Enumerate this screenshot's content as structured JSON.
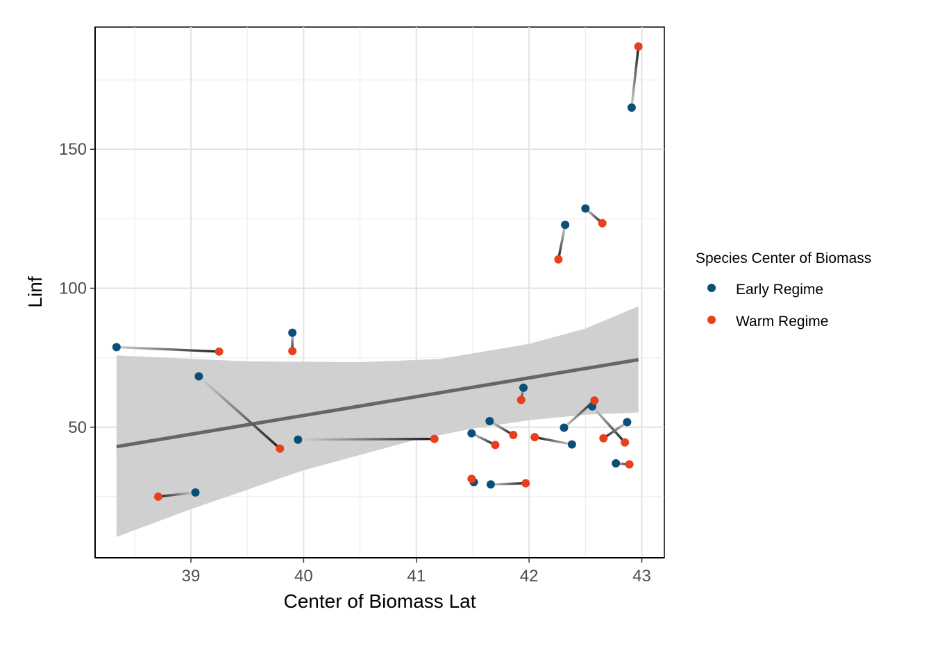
{
  "chart_data": {
    "type": "scatter",
    "title": "",
    "xlabel": "Center of Biomass Lat",
    "ylabel": "Linf",
    "xlim": [
      38.15,
      43.2
    ],
    "ylim": [
      3,
      194
    ],
    "x_ticks": [
      39,
      40,
      41,
      42,
      43
    ],
    "y_ticks": [
      50,
      100,
      150
    ],
    "grid": true,
    "legend": {
      "title": "Species Center of Biomass",
      "placement": "right",
      "entries": [
        {
          "name": "Early Regime",
          "color": "#0a4f7a"
        },
        {
          "name": "Warm Regime",
          "color": "#e8401c"
        }
      ]
    },
    "series": [
      {
        "name": "Early Regime",
        "color": "#0a4f7a",
        "points": [
          [
            38.34,
            78.8
          ],
          [
            39.9,
            84.0
          ],
          [
            39.07,
            68.3
          ],
          [
            39.95,
            45.5
          ],
          [
            39.04,
            26.5
          ],
          [
            41.49,
            47.8
          ],
          [
            41.65,
            52.2
          ],
          [
            41.95,
            64.2
          ],
          [
            41.51,
            30.2
          ],
          [
            41.66,
            29.4
          ],
          [
            42.31,
            49.8
          ],
          [
            42.38,
            43.8
          ],
          [
            42.56,
            57.5
          ],
          [
            42.87,
            51.8
          ],
          [
            42.77,
            37.0
          ],
          [
            42.32,
            122.8
          ],
          [
            42.5,
            128.7
          ],
          [
            42.91,
            165.0
          ]
        ]
      },
      {
        "name": "Warm Regime",
        "color": "#e8401c",
        "points": [
          [
            39.25,
            77.2
          ],
          [
            39.9,
            77.4
          ],
          [
            39.79,
            42.3
          ],
          [
            41.16,
            45.8
          ],
          [
            38.71,
            25.0
          ],
          [
            41.7,
            43.6
          ],
          [
            41.86,
            47.2
          ],
          [
            41.93,
            59.8
          ],
          [
            41.49,
            31.4
          ],
          [
            41.97,
            29.8
          ],
          [
            42.05,
            46.4
          ],
          [
            42.58,
            59.6
          ],
          [
            42.66,
            46.0
          ],
          [
            42.85,
            44.5
          ],
          [
            42.89,
            36.6
          ],
          [
            42.26,
            110.4
          ],
          [
            42.65,
            123.4
          ],
          [
            42.97,
            187.0
          ]
        ]
      }
    ],
    "pairs": [
      [
        38.34,
        78.8,
        39.25,
        77.2
      ],
      [
        39.9,
        84.0,
        39.9,
        77.4
      ],
      [
        39.07,
        68.3,
        39.79,
        42.3
      ],
      [
        39.95,
        45.5,
        41.16,
        45.8
      ],
      [
        39.04,
        26.5,
        38.71,
        25.0
      ],
      [
        41.49,
        47.8,
        41.7,
        43.6
      ],
      [
        41.65,
        52.2,
        41.86,
        47.2
      ],
      [
        41.95,
        64.2,
        41.93,
        59.8
      ],
      [
        41.51,
        30.2,
        41.49,
        31.4
      ],
      [
        41.66,
        29.4,
        41.97,
        29.8
      ],
      [
        42.38,
        43.8,
        42.05,
        46.4
      ],
      [
        42.31,
        49.8,
        42.58,
        59.6
      ],
      [
        42.56,
        57.5,
        42.85,
        44.5
      ],
      [
        42.87,
        51.8,
        42.66,
        46.0
      ],
      [
        42.77,
        37.0,
        42.89,
        36.6
      ],
      [
        42.32,
        122.8,
        42.26,
        110.4
      ],
      [
        42.5,
        128.7,
        42.65,
        123.4
      ],
      [
        42.91,
        165.0,
        42.97,
        187.0
      ]
    ],
    "trend_line": {
      "color": "#666666",
      "start": [
        38.34,
        43.0
      ],
      "end": [
        42.97,
        74.3
      ],
      "band": {
        "color": "#d0d0d0",
        "upper": [
          [
            38.34,
            75.8
          ],
          [
            39.5,
            73.7
          ],
          [
            40.5,
            73.4
          ],
          [
            41.2,
            74.5
          ],
          [
            42.0,
            80.0
          ],
          [
            42.5,
            85.5
          ],
          [
            42.97,
            93.5
          ]
        ],
        "lower": [
          [
            38.34,
            10.5
          ],
          [
            39.0,
            20.5
          ],
          [
            40.0,
            34.5
          ],
          [
            40.5,
            40.0
          ],
          [
            41.0,
            45.5
          ],
          [
            41.5,
            49.5
          ],
          [
            42.0,
            52.5
          ],
          [
            42.5,
            54.5
          ],
          [
            42.97,
            55.3
          ]
        ]
      }
    }
  }
}
